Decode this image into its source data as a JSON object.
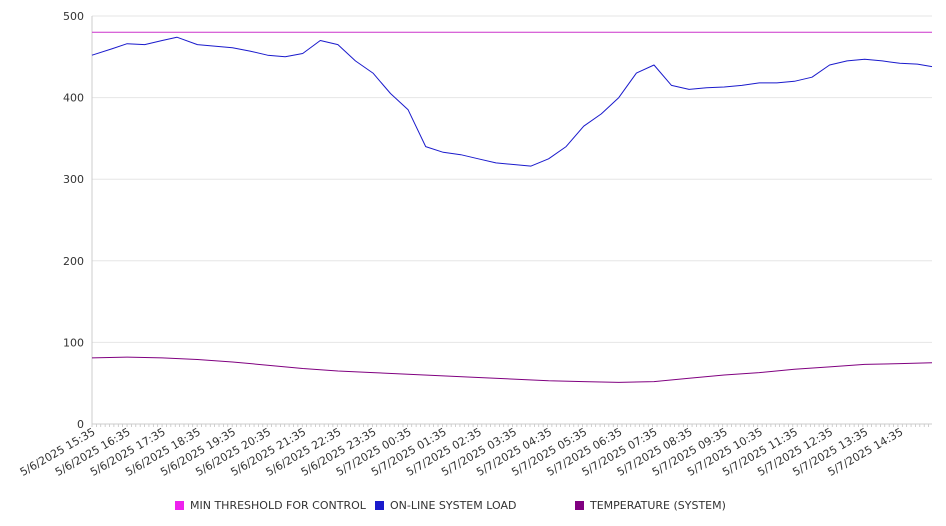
{
  "chart_data": {
    "type": "line",
    "ylim": [
      0,
      500
    ],
    "y_ticks": [
      0,
      100,
      200,
      300,
      400,
      500
    ],
    "x_ticks": [
      "5/6/2025 15:35",
      "5/6/2025 16:35",
      "5/6/2025 17:35",
      "5/6/2025 18:35",
      "5/6/2025 19:35",
      "5/6/2025 20:35",
      "5/6/2025 21:35",
      "5/6/2025 22:35",
      "5/6/2025 23:35",
      "5/7/2025 00:35",
      "5/7/2025 01:35",
      "5/7/2025 02:35",
      "5/7/2025 03:35",
      "5/7/2025 04:35",
      "5/7/2025 05:35",
      "5/7/2025 06:35",
      "5/7/2025 07:35",
      "5/7/2025 08:35",
      "5/7/2025 09:35",
      "5/7/2025 10:35",
      "5/7/2025 11:35",
      "5/7/2025 12:35",
      "5/7/2025 13:35",
      "5/7/2025 14:35"
    ],
    "grid": true,
    "legend_position": "bottom",
    "series": [
      {
        "name": "MIN THRESHOLD FOR CONTROL",
        "color": "#cc33cc",
        "x": [
          "5/6/2025 15:35",
          "5/7/2025 15:30"
        ],
        "values": [
          480,
          480
        ]
      },
      {
        "name": "ON-LINE SYSTEM LOAD",
        "color": "#1a1acc",
        "x": [
          "5/6/2025 15:35",
          "5/6/2025 16:10",
          "5/6/2025 16:35",
          "5/6/2025 17:05",
          "5/6/2025 17:35",
          "5/6/2025 18:00",
          "5/6/2025 18:35",
          "5/6/2025 19:35",
          "5/6/2025 20:05",
          "5/6/2025 20:35",
          "5/6/2025 21:05",
          "5/6/2025 21:35",
          "5/6/2025 22:05",
          "5/6/2025 22:35",
          "5/6/2025 23:05",
          "5/6/2025 23:35",
          "5/7/2025 00:05",
          "5/7/2025 00:35",
          "5/7/2025 01:05",
          "5/7/2025 01:35",
          "5/7/2025 02:05",
          "5/7/2025 02:35",
          "5/7/2025 03:05",
          "5/7/2025 03:35",
          "5/7/2025 04:05",
          "5/7/2025 04:35",
          "5/7/2025 05:05",
          "5/7/2025 05:35",
          "5/7/2025 06:05",
          "5/7/2025 06:35",
          "5/7/2025 07:05",
          "5/7/2025 07:35",
          "5/7/2025 08:05",
          "5/7/2025 08:35",
          "5/7/2025 09:05",
          "5/7/2025 09:35",
          "5/7/2025 10:05",
          "5/7/2025 10:35",
          "5/7/2025 11:05",
          "5/7/2025 11:35",
          "5/7/2025 12:05",
          "5/7/2025 12:35",
          "5/7/2025 13:05",
          "5/7/2025 13:35",
          "5/7/2025 14:05",
          "5/7/2025 14:35",
          "5/7/2025 15:05",
          "5/7/2025 15:30"
        ],
        "values": [
          452,
          460,
          466,
          465,
          470,
          474,
          465,
          461,
          457,
          452,
          450,
          454,
          470,
          465,
          445,
          430,
          405,
          385,
          340,
          333,
          330,
          325,
          320,
          318,
          316,
          325,
          340,
          365,
          380,
          400,
          430,
          440,
          415,
          410,
          412,
          413,
          415,
          418,
          418,
          420,
          425,
          440,
          445,
          447,
          445,
          442,
          441,
          438
        ]
      },
      {
        "name": "TEMPERATURE (SYSTEM)",
        "color": "#800080",
        "x": [
          "5/6/2025 15:35",
          "5/6/2025 16:35",
          "5/6/2025 17:35",
          "5/6/2025 18:35",
          "5/6/2025 19:35",
          "5/6/2025 20:35",
          "5/6/2025 21:35",
          "5/6/2025 22:35",
          "5/6/2025 23:35",
          "5/7/2025 00:35",
          "5/7/2025 01:35",
          "5/7/2025 02:35",
          "5/7/2025 03:35",
          "5/7/2025 04:35",
          "5/7/2025 05:35",
          "5/7/2025 06:35",
          "5/7/2025 07:35",
          "5/7/2025 08:35",
          "5/7/2025 09:35",
          "5/7/2025 10:35",
          "5/7/2025 11:35",
          "5/7/2025 12:35",
          "5/7/2025 13:35",
          "5/7/2025 14:35",
          "5/7/2025 15:30"
        ],
        "values": [
          81,
          82,
          81,
          79,
          76,
          72,
          68,
          65,
          63,
          61,
          59,
          57,
          55,
          53,
          52,
          51,
          52,
          56,
          60,
          63,
          67,
          70,
          73,
          74,
          75
        ]
      }
    ]
  }
}
